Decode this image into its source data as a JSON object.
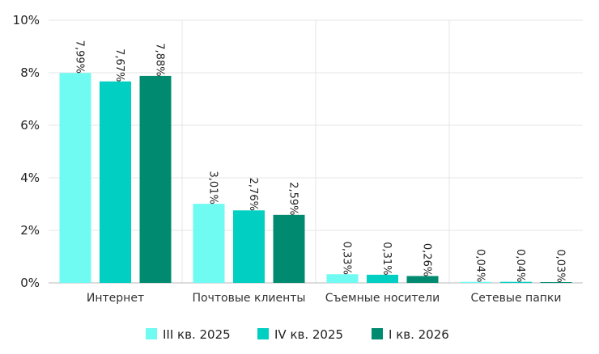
{
  "chart_data": {
    "type": "bar",
    "categories": [
      "Интернет",
      "Почтовые клиенты",
      "Съемные носители",
      "Сетевые папки"
    ],
    "series": [
      {
        "name": "III кв. 2025",
        "color": "#6ffaf2",
        "values": [
          7.99,
          3.01,
          0.33,
          0.04
        ],
        "labels": [
          "7,99%",
          "3,01%",
          "0,33%",
          "0,04%"
        ]
      },
      {
        "name": "IV кв. 2025",
        "color": "#00cfc1",
        "values": [
          7.67,
          2.76,
          0.31,
          0.04
        ],
        "labels": [
          "7,67%",
          "2,76%",
          "0,31%",
          "0,04%"
        ]
      },
      {
        "name": "I кв. 2026",
        "color": "#008a6f",
        "values": [
          7.88,
          2.59,
          0.26,
          0.03
        ],
        "labels": [
          "7,88%",
          "2,59%",
          "0,26%",
          "0,03%"
        ]
      }
    ],
    "ylim": [
      0,
      10
    ],
    "yticks": [
      0,
      2,
      4,
      6,
      8,
      10
    ],
    "ytick_labels": [
      "0%",
      "2%",
      "4%",
      "6%",
      "8%",
      "10%"
    ],
    "grid": true,
    "legend_position": "bottom"
  }
}
